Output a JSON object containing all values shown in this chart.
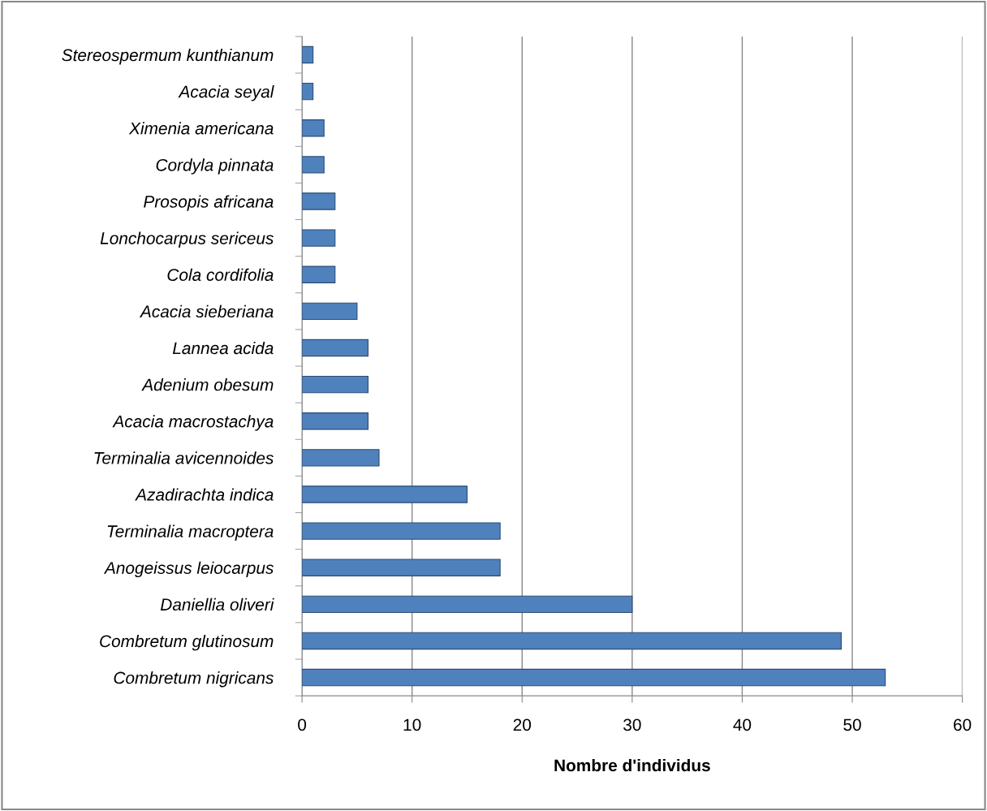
{
  "chart_data": {
    "type": "bar",
    "orientation": "horizontal",
    "xlabel": "Nombre d'individus",
    "categories": [
      "Stereospermum kunthianum",
      "Acacia seyal",
      "Ximenia americana",
      "Cordyla pinnata",
      "Prosopis africana",
      "Lonchocarpus sericeus",
      "Cola cordifolia",
      "Acacia sieberiana",
      "Lannea acida",
      "Adenium obesum",
      "Acacia macrostachya",
      "Terminalia avicennoides",
      "Azadirachta indica",
      "Terminalia macroptera",
      "Anogeissus leiocarpus",
      "Daniellia oliveri",
      "Combretum glutinosum",
      "Combretum nigricans"
    ],
    "values": [
      1,
      1,
      2,
      2,
      3,
      3,
      3,
      5,
      6,
      6,
      6,
      7,
      15,
      18,
      18,
      30,
      49,
      53
    ],
    "color": "#4f81bd",
    "xlim": [
      0,
      60
    ],
    "xticks": [
      0,
      10,
      20,
      30,
      40,
      50,
      60
    ],
    "grid": "x",
    "legend": false
  }
}
